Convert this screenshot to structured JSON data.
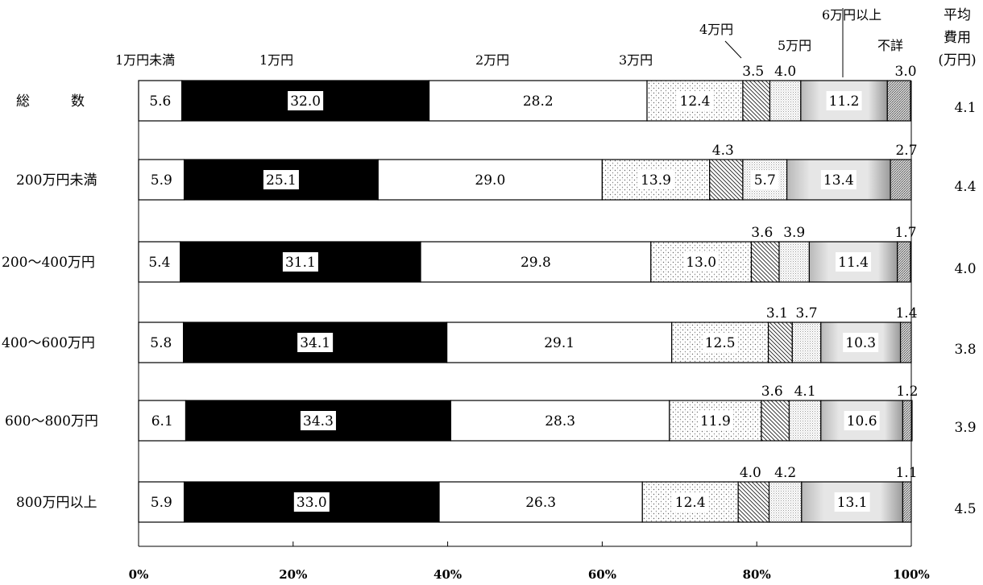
{
  "chart_data": {
    "type": "bar",
    "orientation": "horizontal",
    "stacked": true,
    "percent_stacked": true,
    "categories": [
      "総　　　数",
      "200万円未満",
      "200〜400万円",
      "400〜600万円",
      "600〜800万円",
      "800万円以上"
    ],
    "series": [
      {
        "name": "1万円未満",
        "values": [
          5.6,
          5.9,
          5.4,
          5.8,
          6.1,
          5.9
        ],
        "fill": "#ffffff"
      },
      {
        "name": "1万円",
        "values": [
          32.0,
          25.1,
          31.1,
          34.1,
          34.3,
          33.0
        ],
        "fill": "#000000"
      },
      {
        "name": "2万円",
        "values": [
          28.2,
          29.0,
          29.8,
          29.1,
          28.3,
          26.3
        ],
        "fill": "#ffffff"
      },
      {
        "name": "3万円",
        "values": [
          12.4,
          13.9,
          13.0,
          12.5,
          11.9,
          12.4
        ],
        "fill": "dots"
      },
      {
        "name": "4万円",
        "values": [
          3.5,
          4.3,
          3.6,
          3.1,
          3.6,
          4.0
        ],
        "fill": "diagonal"
      },
      {
        "name": "5万円",
        "values": [
          4.0,
          5.7,
          3.9,
          3.7,
          4.1,
          4.2
        ],
        "fill": "fine"
      },
      {
        "name": "6万円以上",
        "values": [
          11.2,
          13.4,
          11.4,
          10.3,
          10.6,
          13.1
        ],
        "fill": "gradient"
      },
      {
        "name": "不詳",
        "values": [
          3.0,
          2.7,
          1.7,
          1.4,
          1.2,
          1.1
        ],
        "fill": "stipple"
      }
    ],
    "right_column": {
      "header": [
        "平均",
        "費用",
        "(万円)"
      ],
      "values": [
        "4.1",
        "4.4",
        "4.0",
        "3.8",
        "3.9",
        "4.5"
      ]
    },
    "x_ticks": [
      "0%",
      "20%",
      "40%",
      "60%",
      "80%",
      "100%"
    ],
    "xlim": [
      0,
      100
    ],
    "grid": false,
    "legend": "top"
  }
}
